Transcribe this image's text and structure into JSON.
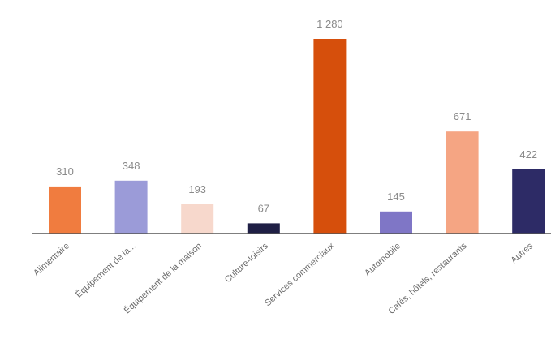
{
  "chart_data": {
    "type": "bar",
    "title": "",
    "xlabel": "",
    "ylabel": "",
    "ylim": [
      0,
      1280
    ],
    "grid": false,
    "legend": "none",
    "categories": [
      "Alimentaire",
      "Équipement de la...",
      "Équipement de la maison",
      "Culture-loisirs",
      "Services commerciaux",
      "Automobile",
      "Cafés, hôtels, restaurants",
      "Autres"
    ],
    "values": [
      310,
      348,
      193,
      67,
      1280,
      145,
      671,
      422
    ],
    "value_labels": [
      "310",
      "348",
      "193",
      "67",
      "1 280",
      "145",
      "671",
      "422"
    ],
    "colors": [
      "#f07c3f",
      "#9b9bd8",
      "#f7d8cc",
      "#1f1f45",
      "#d64f0c",
      "#7f76c6",
      "#f5a583",
      "#2d2b66"
    ]
  }
}
